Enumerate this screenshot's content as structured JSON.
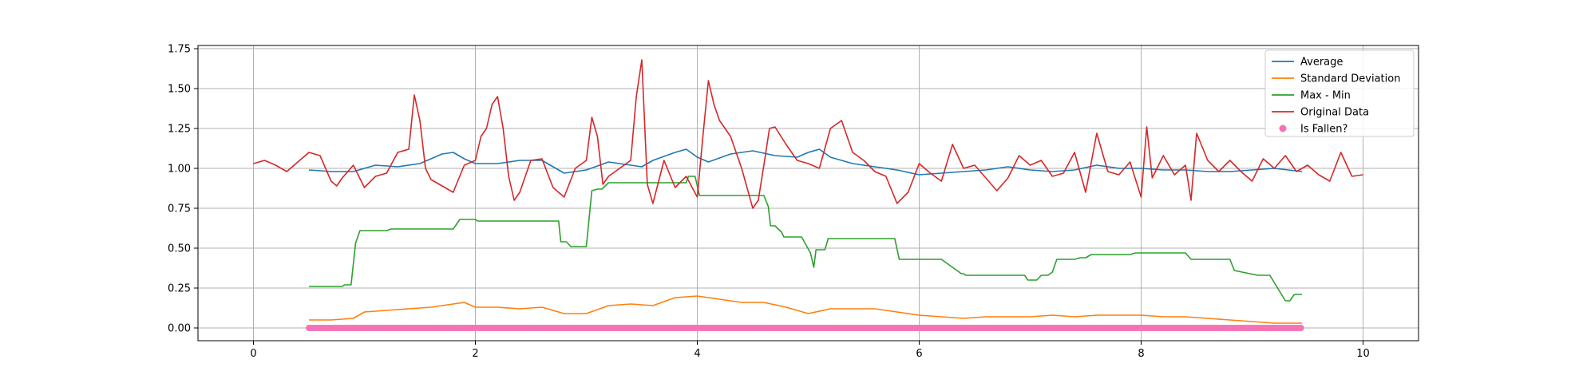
{
  "chart_data": {
    "type": "line",
    "title": "",
    "xlabel": "",
    "ylabel": "",
    "xlim": [
      -0.5,
      10.5
    ],
    "ylim": [
      -0.08,
      1.77
    ],
    "x_ticks": [
      0,
      2,
      4,
      6,
      8,
      10
    ],
    "y_ticks": [
      0.0,
      0.25,
      0.5,
      0.75,
      1.0,
      1.25,
      1.5,
      1.75
    ],
    "x_tick_labels": [
      "0",
      "2",
      "4",
      "6",
      "8",
      "10"
    ],
    "y_tick_labels": [
      "0.00",
      "0.25",
      "0.50",
      "0.75",
      "1.00",
      "1.25",
      "1.50",
      "1.75"
    ],
    "grid": true,
    "legend_position": "top-right",
    "legend": [
      "Average",
      "Standard Deviation",
      "Max - Min",
      "Original Data",
      "Is Fallen?"
    ],
    "series": [
      {
        "name": "Average",
        "kind": "line",
        "color": "#1f77b4",
        "x": [
          0.5,
          0.7,
          0.9,
          1.1,
          1.3,
          1.5,
          1.7,
          1.8,
          1.9,
          2.0,
          2.2,
          2.4,
          2.6,
          2.8,
          3.0,
          3.2,
          3.4,
          3.5,
          3.6,
          3.8,
          3.9,
          4.0,
          4.1,
          4.3,
          4.5,
          4.7,
          4.9,
          5.0,
          5.1,
          5.2,
          5.4,
          5.6,
          5.8,
          6.0,
          6.2,
          6.4,
          6.6,
          6.8,
          7.0,
          7.2,
          7.4,
          7.6,
          7.8,
          8.0,
          8.2,
          8.4,
          8.6,
          8.8,
          9.0,
          9.2,
          9.45
        ],
        "y": [
          0.99,
          0.98,
          0.98,
          1.02,
          1.01,
          1.03,
          1.09,
          1.1,
          1.06,
          1.03,
          1.03,
          1.05,
          1.05,
          0.97,
          0.99,
          1.04,
          1.02,
          1.01,
          1.05,
          1.1,
          1.12,
          1.07,
          1.04,
          1.09,
          1.11,
          1.08,
          1.07,
          1.1,
          1.12,
          1.07,
          1.03,
          1.01,
          0.99,
          0.96,
          0.97,
          0.98,
          0.99,
          1.01,
          0.99,
          0.98,
          0.99,
          1.02,
          1.0,
          1.0,
          0.99,
          0.99,
          0.98,
          0.98,
          0.99,
          1.0,
          0.98
        ]
      },
      {
        "name": "Standard Deviation",
        "kind": "line",
        "color": "#ff7f0e",
        "x": [
          0.5,
          0.7,
          0.9,
          1.0,
          1.2,
          1.4,
          1.6,
          1.8,
          1.9,
          2.0,
          2.2,
          2.4,
          2.6,
          2.8,
          3.0,
          3.2,
          3.4,
          3.6,
          3.8,
          4.0,
          4.2,
          4.4,
          4.6,
          4.8,
          5.0,
          5.2,
          5.4,
          5.6,
          5.8,
          6.0,
          6.2,
          6.4,
          6.6,
          6.8,
          7.0,
          7.2,
          7.4,
          7.6,
          7.8,
          8.0,
          8.2,
          8.4,
          8.6,
          8.8,
          9.0,
          9.2,
          9.45
        ],
        "y": [
          0.05,
          0.05,
          0.06,
          0.1,
          0.11,
          0.12,
          0.13,
          0.15,
          0.16,
          0.13,
          0.13,
          0.12,
          0.13,
          0.09,
          0.09,
          0.14,
          0.15,
          0.14,
          0.19,
          0.2,
          0.18,
          0.16,
          0.16,
          0.13,
          0.09,
          0.12,
          0.12,
          0.12,
          0.1,
          0.08,
          0.07,
          0.06,
          0.07,
          0.07,
          0.07,
          0.08,
          0.07,
          0.08,
          0.08,
          0.08,
          0.07,
          0.07,
          0.06,
          0.05,
          0.04,
          0.03,
          0.03
        ]
      },
      {
        "name": "Max - Min",
        "kind": "line",
        "color": "#2ca02c",
        "x": [
          0.5,
          0.8,
          0.82,
          0.88,
          0.92,
          0.96,
          1.2,
          1.24,
          1.8,
          1.82,
          1.86,
          2.0,
          2.02,
          2.3,
          2.32,
          2.75,
          2.77,
          2.82,
          2.86,
          3.0,
          3.05,
          3.1,
          3.14,
          3.2,
          3.22,
          3.9,
          3.92,
          3.98,
          4.02,
          4.06,
          4.6,
          4.64,
          4.66,
          4.7,
          4.76,
          4.78,
          4.84,
          4.86,
          4.94,
          4.98,
          5.02,
          5.05,
          5.07,
          5.1,
          5.15,
          5.18,
          5.22,
          5.26,
          5.78,
          5.82,
          6.2,
          6.22,
          6.26,
          6.3,
          6.34,
          6.38,
          6.4,
          6.42,
          6.46,
          6.5,
          6.95,
          6.98,
          7.06,
          7.1,
          7.16,
          7.2,
          7.24,
          7.4,
          7.45,
          7.5,
          7.55,
          7.6,
          7.9,
          7.95,
          8.05,
          8.4,
          8.45,
          8.8,
          8.84,
          9.05,
          9.08,
          9.12,
          9.16,
          9.3,
          9.34,
          9.38,
          9.45
        ],
        "y": [
          0.26,
          0.26,
          0.27,
          0.27,
          0.53,
          0.61,
          0.61,
          0.62,
          0.62,
          0.64,
          0.68,
          0.68,
          0.67,
          0.67,
          0.67,
          0.67,
          0.54,
          0.54,
          0.51,
          0.51,
          0.86,
          0.87,
          0.87,
          0.91,
          0.91,
          0.91,
          0.95,
          0.95,
          0.83,
          0.83,
          0.83,
          0.76,
          0.64,
          0.64,
          0.6,
          0.57,
          0.57,
          0.57,
          0.57,
          0.52,
          0.47,
          0.38,
          0.49,
          0.49,
          0.49,
          0.56,
          0.56,
          0.56,
          0.56,
          0.43,
          0.43,
          0.42,
          0.4,
          0.38,
          0.36,
          0.34,
          0.34,
          0.33,
          0.33,
          0.33,
          0.33,
          0.3,
          0.3,
          0.33,
          0.33,
          0.35,
          0.43,
          0.43,
          0.44,
          0.44,
          0.46,
          0.46,
          0.46,
          0.47,
          0.47,
          0.47,
          0.43,
          0.43,
          0.36,
          0.33,
          0.33,
          0.33,
          0.33,
          0.17,
          0.17,
          0.21,
          0.21
        ]
      },
      {
        "name": "Original Data",
        "kind": "line",
        "color": "#d62728",
        "x": [
          0.0,
          0.1,
          0.2,
          0.3,
          0.4,
          0.5,
          0.6,
          0.7,
          0.75,
          0.8,
          0.85,
          0.9,
          1.0,
          1.1,
          1.2,
          1.3,
          1.4,
          1.45,
          1.5,
          1.55,
          1.6,
          1.7,
          1.8,
          1.9,
          2.0,
          2.05,
          2.1,
          2.15,
          2.2,
          2.25,
          2.3,
          2.35,
          2.4,
          2.5,
          2.6,
          2.7,
          2.8,
          2.9,
          3.0,
          3.05,
          3.1,
          3.15,
          3.2,
          3.3,
          3.4,
          3.45,
          3.5,
          3.55,
          3.6,
          3.7,
          3.8,
          3.9,
          4.0,
          4.05,
          4.1,
          4.15,
          4.2,
          4.3,
          4.4,
          4.5,
          4.55,
          4.6,
          4.65,
          4.7,
          4.8,
          4.9,
          5.0,
          5.1,
          5.2,
          5.3,
          5.4,
          5.5,
          5.6,
          5.7,
          5.8,
          5.9,
          6.0,
          6.1,
          6.2,
          6.3,
          6.4,
          6.5,
          6.6,
          6.7,
          6.8,
          6.9,
          7.0,
          7.1,
          7.2,
          7.3,
          7.4,
          7.5,
          7.6,
          7.7,
          7.8,
          7.9,
          8.0,
          8.05,
          8.1,
          8.2,
          8.3,
          8.4,
          8.45,
          8.5,
          8.6,
          8.7,
          8.8,
          8.9,
          9.0,
          9.1,
          9.2,
          9.3,
          9.4,
          9.5,
          9.6,
          9.7,
          9.8,
          9.9,
          10.0
        ],
        "y": [
          1.03,
          1.05,
          1.02,
          0.98,
          1.04,
          1.1,
          1.08,
          0.92,
          0.89,
          0.94,
          0.98,
          1.02,
          0.88,
          0.95,
          0.97,
          1.1,
          1.12,
          1.46,
          1.3,
          1.0,
          0.93,
          0.89,
          0.85,
          1.02,
          1.05,
          1.2,
          1.25,
          1.4,
          1.45,
          1.25,
          0.95,
          0.8,
          0.85,
          1.05,
          1.06,
          0.88,
          0.82,
          1.0,
          1.05,
          1.32,
          1.2,
          0.9,
          0.95,
          1.0,
          1.05,
          1.45,
          1.68,
          0.9,
          0.78,
          1.05,
          0.88,
          0.95,
          0.82,
          1.2,
          1.55,
          1.4,
          1.3,
          1.2,
          1.0,
          0.75,
          0.8,
          1.02,
          1.25,
          1.26,
          1.15,
          1.05,
          1.03,
          1.0,
          1.25,
          1.3,
          1.1,
          1.05,
          0.98,
          0.95,
          0.78,
          0.85,
          1.03,
          0.97,
          0.92,
          1.15,
          1.0,
          1.02,
          0.94,
          0.86,
          0.94,
          1.08,
          1.02,
          1.05,
          0.95,
          0.97,
          1.1,
          0.85,
          1.22,
          0.98,
          0.96,
          1.04,
          0.82,
          1.26,
          0.94,
          1.08,
          0.96,
          1.02,
          0.8,
          1.22,
          1.05,
          0.98,
          1.05,
          0.98,
          0.92,
          1.06,
          1.0,
          1.08,
          0.98,
          1.02,
          0.96,
          0.92,
          1.1,
          0.95,
          0.96
        ]
      },
      {
        "name": "Is Fallen?",
        "kind": "scatter",
        "color": "#f472b6",
        "x_start": 0.5,
        "x_end": 9.45,
        "x_step": 0.02,
        "y_value": 0.0
      }
    ]
  }
}
